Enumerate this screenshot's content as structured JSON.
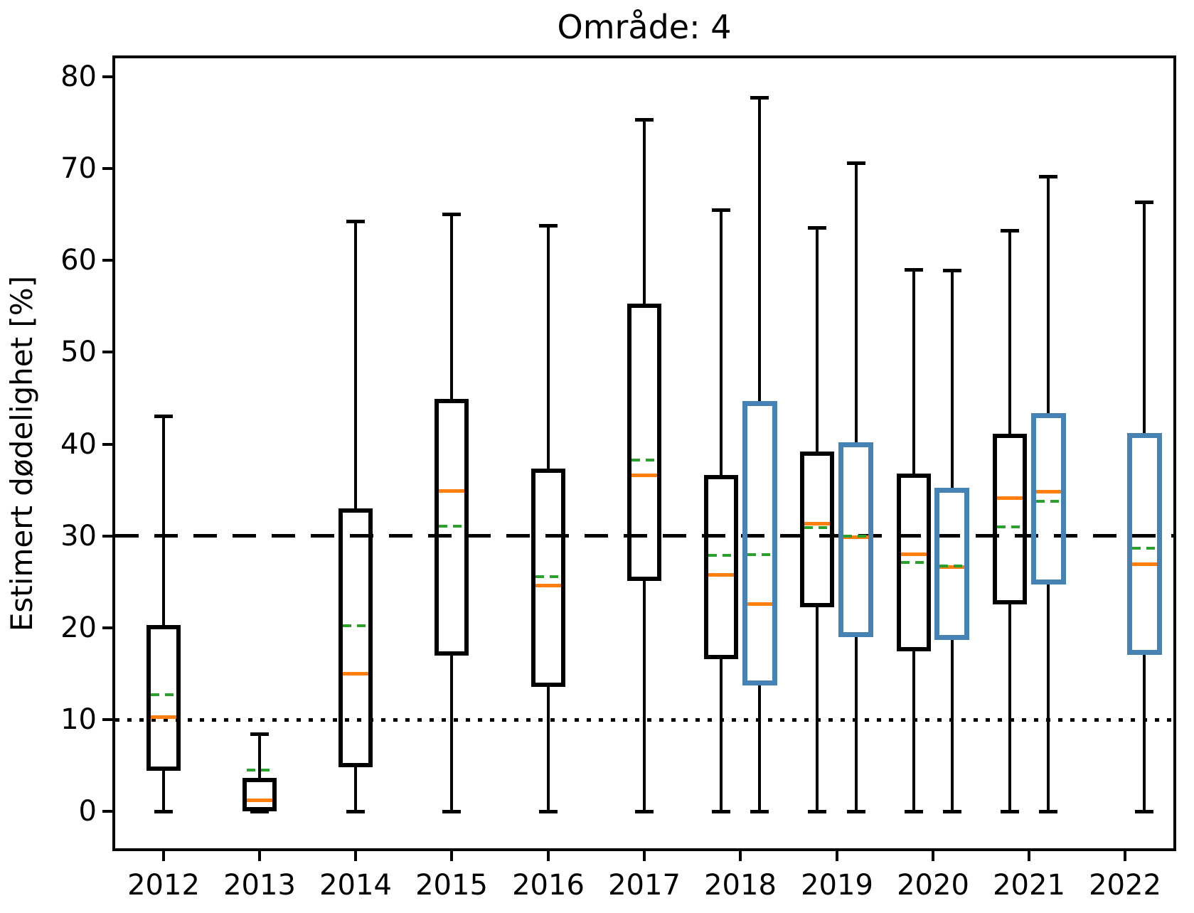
{
  "title": "Område: 4",
  "ylabel": "Estimert dødelighet [%]",
  "chart_data": {
    "type": "boxplot",
    "title": "Område: 4",
    "xlabel": "",
    "ylabel": "Estimert dødelighet [%]",
    "categories": [
      2012,
      2013,
      2014,
      2015,
      2016,
      2017,
      2018,
      2019,
      2020,
      2021,
      2022
    ],
    "yticks": [
      0,
      10,
      20,
      30,
      40,
      50,
      60,
      70,
      80
    ],
    "ylim": [
      -4,
      82
    ],
    "grid": false,
    "legend": "none",
    "reference_lines": [
      {
        "y": 30,
        "style": "dashed",
        "color": "#000000"
      },
      {
        "y": 10,
        "style": "dotted",
        "color": "#000000"
      }
    ],
    "colors": {
      "median": "#ff7f0e",
      "mean": "#2ca02c",
      "black_series": "#000000",
      "blue_series": "#4682b4",
      "whisker": "#000000"
    },
    "series": [
      {
        "name": "black",
        "color": "#000000",
        "linewidth": 6,
        "boxes": [
          {
            "year": 2012,
            "offset": 0,
            "whislo": 0,
            "q1": 4.7,
            "med": 10.3,
            "mean": 12.7,
            "q3": 20.1,
            "whishi": 43.0
          },
          {
            "year": 2013,
            "offset": 0,
            "whislo": 0,
            "q1": 0.2,
            "med": 1.2,
            "mean": 4.5,
            "q3": 3.4,
            "whishi": 8.4
          },
          {
            "year": 2014,
            "offset": 0,
            "whislo": 0,
            "q1": 5.1,
            "med": 15.0,
            "mean": 20.2,
            "q3": 32.8,
            "whishi": 64.2
          },
          {
            "year": 2015,
            "offset": 0,
            "whislo": 0,
            "q1": 17.2,
            "med": 34.9,
            "mean": 31.1,
            "q3": 44.7,
            "whishi": 65.0
          },
          {
            "year": 2016,
            "offset": 0,
            "whislo": 0,
            "q1": 13.8,
            "med": 24.6,
            "mean": 25.6,
            "q3": 37.1,
            "whishi": 63.8
          },
          {
            "year": 2017,
            "offset": 0,
            "whislo": 0,
            "q1": 25.4,
            "med": 36.6,
            "mean": 38.3,
            "q3": 55.1,
            "whishi": 75.3
          },
          {
            "year": 2018,
            "offset": -0.2,
            "whislo": 0,
            "q1": 16.8,
            "med": 25.8,
            "mean": 27.9,
            "q3": 36.4,
            "whishi": 65.5
          },
          {
            "year": 2019,
            "offset": -0.2,
            "whislo": 0,
            "q1": 22.5,
            "med": 31.3,
            "mean": 30.9,
            "q3": 39.0,
            "whishi": 63.5
          },
          {
            "year": 2020,
            "offset": -0.2,
            "whislo": 0,
            "q1": 17.7,
            "med": 28.0,
            "mean": 27.1,
            "q3": 36.6,
            "whishi": 59.0
          },
          {
            "year": 2021,
            "offset": -0.2,
            "whislo": 0,
            "q1": 22.8,
            "med": 34.1,
            "mean": 31.0,
            "q3": 40.9,
            "whishi": 63.2
          }
        ]
      },
      {
        "name": "blue",
        "color": "#4682b4",
        "linewidth": 7,
        "boxes": [
          {
            "year": 2018,
            "offset": 0.2,
            "whislo": 0,
            "q1": 14.0,
            "med": 22.6,
            "mean": 28.0,
            "q3": 44.4,
            "whishi": 77.7
          },
          {
            "year": 2019,
            "offset": 0.2,
            "whislo": 0,
            "q1": 19.2,
            "med": 29.9,
            "mean": 30.0,
            "q3": 39.9,
            "whishi": 70.6
          },
          {
            "year": 2020,
            "offset": 0.2,
            "whislo": 0,
            "q1": 19.0,
            "med": 26.6,
            "mean": 26.7,
            "q3": 35.0,
            "whishi": 58.9
          },
          {
            "year": 2021,
            "offset": 0.2,
            "whislo": 0,
            "q1": 25.0,
            "med": 34.8,
            "mean": 33.8,
            "q3": 43.1,
            "whishi": 69.1
          },
          {
            "year": 2022,
            "offset": 0.2,
            "whislo": 0,
            "q1": 17.3,
            "med": 26.9,
            "mean": 28.7,
            "q3": 40.9,
            "whishi": 66.3
          }
        ]
      }
    ]
  }
}
